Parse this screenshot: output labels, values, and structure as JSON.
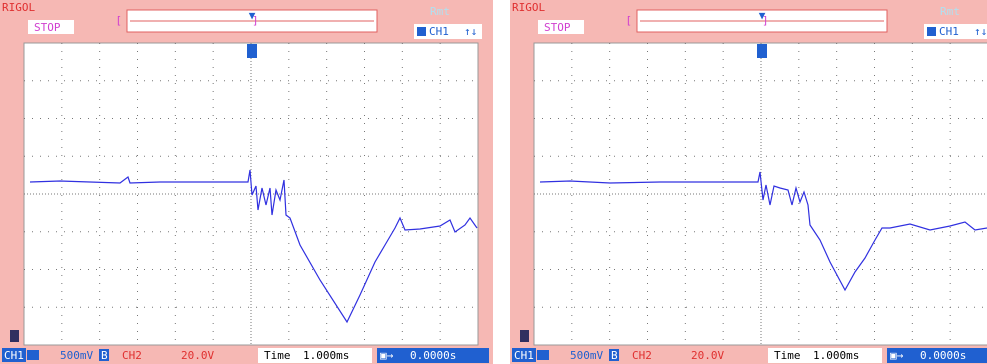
{
  "screens": [
    {
      "brand": "RIGOL",
      "status": "STOP",
      "remote": "Rmt",
      "trigger_source": "CH1",
      "trigger_slope": "↑↓",
      "ch1_label": "CH1",
      "ch1_scale": "500mV",
      "ch1_bw": "B",
      "ch2_label": "CH2",
      "ch2_scale": "20.0V",
      "time_label": "Time",
      "time_scale": "1.000ms",
      "trigger_offset": "0.0000s"
    },
    {
      "brand": "RIGOL",
      "status": "STOP",
      "remote": "Rmt",
      "trigger_source": "CH1",
      "trigger_slope": "↑↓",
      "ch1_label": "CH1",
      "ch1_scale": "500mV",
      "ch1_bw": "B",
      "ch2_label": "CH2",
      "ch2_scale": "20.0V",
      "time_label": "Time",
      "time_scale": "1.000ms",
      "trigger_offset": "0.0000s"
    }
  ]
}
